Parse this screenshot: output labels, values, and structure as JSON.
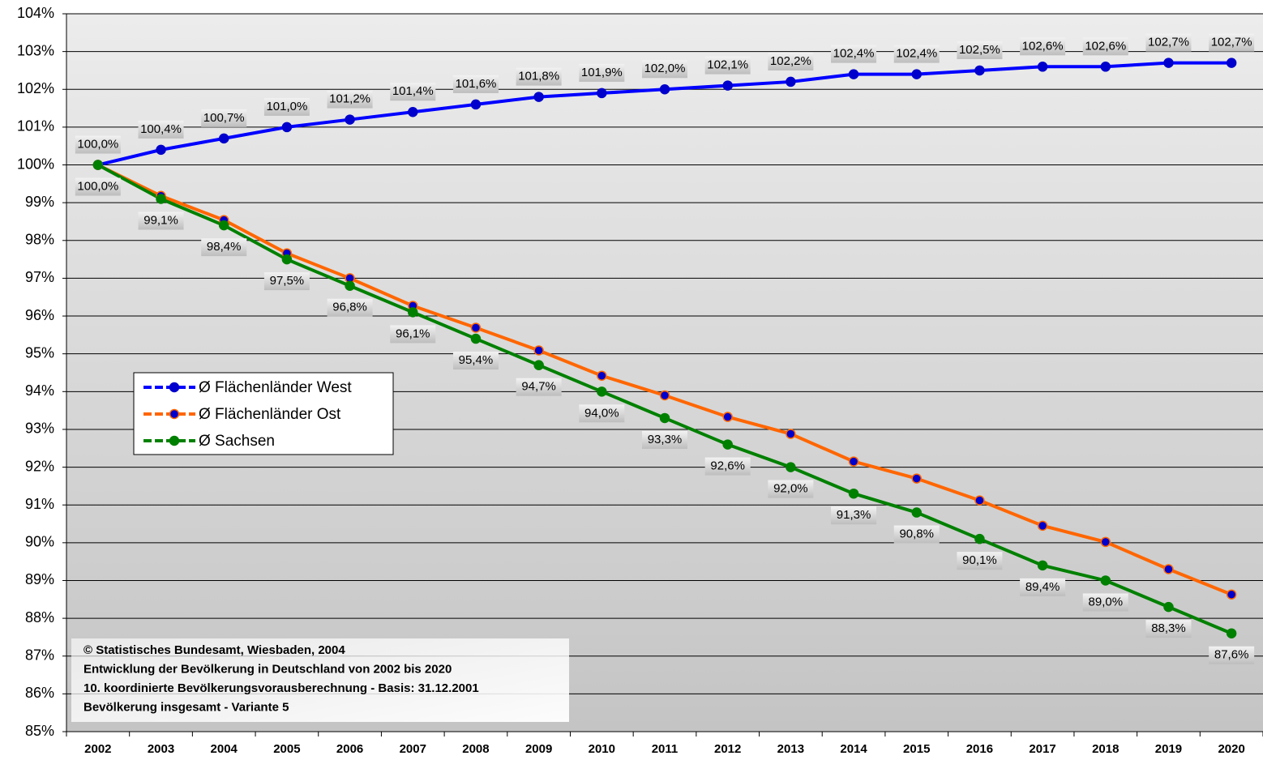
{
  "chart_data": {
    "type": "line",
    "categories": [
      "2002",
      "2003",
      "2004",
      "2005",
      "2006",
      "2007",
      "2008",
      "2009",
      "2010",
      "2011",
      "2012",
      "2013",
      "2014",
      "2015",
      "2016",
      "2017",
      "2018",
      "2019",
      "2020"
    ],
    "series": [
      {
        "name": "Ø Flächenländer West",
        "color": "#0000ff",
        "values": [
          100.0,
          100.4,
          100.7,
          101.0,
          101.2,
          101.4,
          101.6,
          101.8,
          101.9,
          102.0,
          102.1,
          102.2,
          102.4,
          102.4,
          102.5,
          102.6,
          102.6,
          102.7,
          102.7
        ],
        "value_labels": [
          "100,0%",
          "100,4%",
          "100,7%",
          "101,0%",
          "101,2%",
          "101,4%",
          "101,6%",
          "101,8%",
          "101,9%",
          "102,0%",
          "102,1%",
          "102,2%",
          "102,4%",
          "102,4%",
          "102,5%",
          "102,6%",
          "102,6%",
          "102,7%",
          "102,7%"
        ]
      },
      {
        "name": "Ø Flächenländer Ost",
        "color": "#ff6600",
        "values": [
          100.0,
          99.18,
          98.54,
          97.66,
          97.0,
          96.27,
          95.69,
          95.09,
          94.42,
          93.9,
          93.33,
          92.88,
          92.15,
          91.7,
          91.12,
          90.45,
          90.02,
          89.3,
          88.63
        ]
      },
      {
        "name": "Ø Sachsen",
        "color": "#008000",
        "values": [
          100.0,
          99.1,
          98.4,
          97.5,
          96.8,
          96.1,
          95.4,
          94.7,
          94.0,
          93.3,
          92.6,
          92.0,
          91.3,
          90.8,
          90.1,
          89.4,
          89.0,
          88.3,
          87.6
        ],
        "value_labels": [
          "100,0%",
          "99,1%",
          "98,4%",
          "97,5%",
          "96,8%",
          "96,1%",
          "95,4%",
          "94,7%",
          "94,0%",
          "93,3%",
          "92,6%",
          "92,0%",
          "91,3%",
          "90,8%",
          "90,1%",
          "89,4%",
          "89,0%",
          "88,3%",
          "87,6%"
        ]
      }
    ],
    "ylim": [
      85,
      104
    ],
    "yticks": [
      {
        "value": 85,
        "label": "85%"
      },
      {
        "value": 86,
        "label": "86%"
      },
      {
        "value": 87,
        "label": "87%"
      },
      {
        "value": 88,
        "label": "88%"
      },
      {
        "value": 89,
        "label": "89%"
      },
      {
        "value": 90,
        "label": "90%"
      },
      {
        "value": 91,
        "label": "91%"
      },
      {
        "value": 92,
        "label": "92%"
      },
      {
        "value": 93,
        "label": "93%"
      },
      {
        "value": 94,
        "label": "94%"
      },
      {
        "value": 95,
        "label": "95%"
      },
      {
        "value": 96,
        "label": "96%"
      },
      {
        "value": 97,
        "label": "97%"
      },
      {
        "value": 98,
        "label": "98%"
      },
      {
        "value": 99,
        "label": "99%"
      },
      {
        "value": 100,
        "label": "100%"
      },
      {
        "value": 101,
        "label": "101%"
      },
      {
        "value": 102,
        "label": "102%"
      },
      {
        "value": 103,
        "label": "103%"
      },
      {
        "value": 104,
        "label": "104%"
      }
    ],
    "grid": true,
    "legend": "left",
    "annotation": [
      "© Statistisches Bundesamt, Wiesbaden, 2004",
      "Entwicklung der Bevölkerung in Deutschland von 2002 bis 2020",
      "10. koordinierte Bevölkerungsvorausberechnung - Basis: 31.12.2001",
      "Bevölkerung insgesamt - Variante 5"
    ]
  }
}
